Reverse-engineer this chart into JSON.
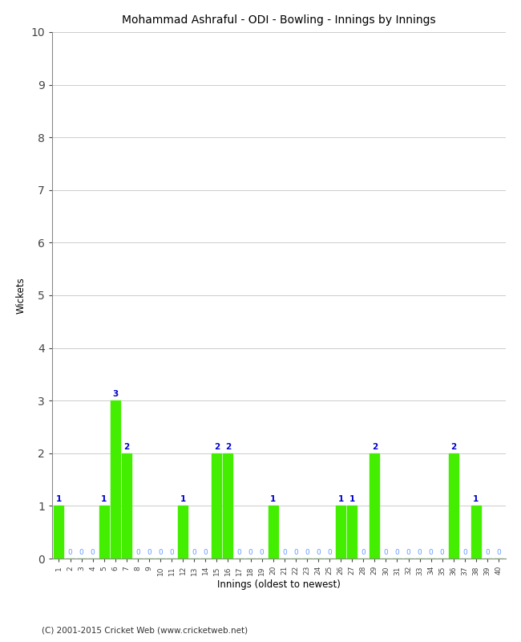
{
  "title": "Mohammad Ashraful - ODI - Bowling - Innings by Innings",
  "xlabel": "Innings (oldest to newest)",
  "ylabel": "Wickets",
  "ylim": [
    0,
    10
  ],
  "yticks": [
    0,
    1,
    2,
    3,
    4,
    5,
    6,
    7,
    8,
    9,
    10
  ],
  "bar_color": "#44ee00",
  "label_color_nonzero": "#0000cc",
  "label_color_zero": "#6699ff",
  "background_color": "#ffffff",
  "footer": "(C) 2001-2015 Cricket Web (www.cricketweb.net)",
  "innings": [
    1,
    2,
    3,
    4,
    5,
    6,
    7,
    8,
    9,
    10,
    11,
    12,
    13,
    14,
    15,
    16,
    17,
    18,
    19,
    20,
    21,
    22,
    23,
    24,
    25,
    26,
    27,
    28,
    29,
    30,
    31,
    32,
    33,
    34,
    35,
    36,
    37,
    38,
    39,
    40
  ],
  "wickets": [
    1,
    0,
    0,
    0,
    1,
    3,
    2,
    0,
    0,
    0,
    0,
    1,
    0,
    0,
    2,
    2,
    0,
    0,
    0,
    1,
    0,
    0,
    0,
    0,
    0,
    1,
    1,
    0,
    2,
    0,
    0,
    0,
    0,
    0,
    0,
    2,
    0,
    1,
    0,
    0
  ]
}
